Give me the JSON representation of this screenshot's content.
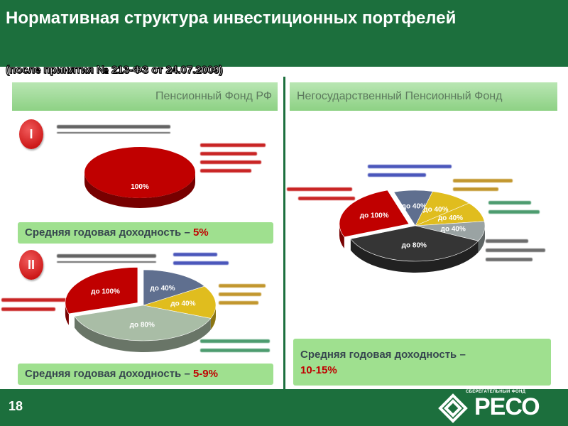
{
  "header": {
    "title": "Нормативная структура инвестиционных портфелей",
    "subtitle": "(после принятия № 213-ФЗ от 24.07.2009)"
  },
  "tabs": {
    "left": "Пенсионный Фонд РФ",
    "right": "Негосударственный Пенсионный Фонд"
  },
  "badges": {
    "one": "I",
    "two": "II"
  },
  "yields": {
    "conservative_label": "Средняя годовая доходность – ",
    "conservative_value": "5%",
    "extended_label": "Средняя годовая доходность – ",
    "extended_value": "5-9%",
    "npf_label": "Средняя годовая доходность –",
    "npf_value": "10-15%"
  },
  "footer": {
    "page": "18",
    "logo_small": "СБЕРЕГАТЕЛЬНЫЙ ФОНД",
    "logo": "РЕСО"
  },
  "colors": {
    "brand_green": "#1c6f3d",
    "tab_green": "#a6dca0",
    "yield_green": "#9fe08f",
    "red": "#c00000",
    "slate": "#5f6f8f",
    "yellow": "#e0bd1e",
    "gray": "#9aa3a3",
    "dark": "#353535",
    "sage": "#a9bda6"
  },
  "chart_data": [
    {
      "type": "pie",
      "slices": [
        {
          "label": "100%",
          "value": 100,
          "color": "#c00000"
        }
      ]
    },
    {
      "type": "pie",
      "slices": [
        {
          "label": "до 40%",
          "value": 16,
          "color": "#5f6f8f"
        },
        {
          "label": "до 40%",
          "value": 15,
          "color": "#e0bd1e"
        },
        {
          "label": "до 80%",
          "value": 39,
          "color": "#a9bda6"
        },
        {
          "label": "до 100%",
          "value": 30,
          "color": "#c00000"
        }
      ]
    },
    {
      "type": "pie",
      "slices": [
        {
          "label": "до 40%",
          "value": 9,
          "color": "#5f6f8f"
        },
        {
          "label": "до 40%",
          "value": 10,
          "color": "#e0bd1e"
        },
        {
          "label": "до 40%",
          "value": 9,
          "color": "#e0bd1e"
        },
        {
          "label": "до 40%",
          "value": 9,
          "color": "#9aa3a3"
        },
        {
          "label": "до 80%",
          "value": 37,
          "color": "#353535"
        },
        {
          "label": "до 100%",
          "value": 26,
          "color": "#c00000"
        }
      ]
    }
  ]
}
